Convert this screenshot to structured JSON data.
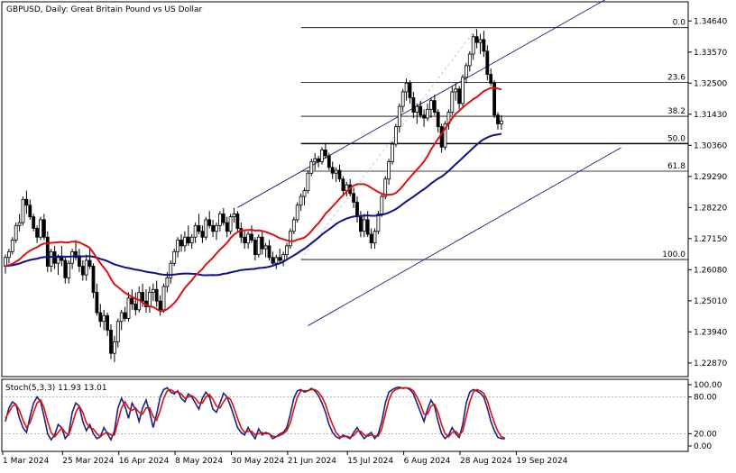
{
  "colors": {
    "background": "#ffffff",
    "frame": "#000000",
    "bull_candle": "#ffffff",
    "bear_candle": "#000000",
    "ma_fast": "#e01010",
    "ma_slow": "#10108a",
    "fib_line": "#000000",
    "channel": "#1a237e",
    "stoch_main": "#1a237e",
    "stoch_signal": "#e01010",
    "dashed_trend": "#bdbdbd"
  },
  "chart_data": [
    {
      "type": "candlestick",
      "title": "GBPUSD, Daily:  Great Britain Pound vs US Dollar",
      "ylim": [
        1.224,
        1.353
      ],
      "yticks": [
        "1.34640",
        "1.33570",
        "1.32500",
        "1.31430",
        "1.30360",
        "1.29290",
        "1.28220",
        "1.27150",
        "1.26080",
        "1.25010",
        "1.23940",
        "1.22870"
      ],
      "xticks": [
        "1 Mar 2024",
        "25 Mar 2024",
        "16 Apr 2024",
        "8 May 2024",
        "30 May 2024",
        "21 Jun 2024",
        "15 Jul 2024",
        "6 Aug 2024",
        "28 Aug 2024",
        "19 Sep 2024"
      ],
      "xtick_index": [
        0,
        17,
        33,
        49,
        65,
        81,
        98,
        114,
        130,
        146
      ],
      "grid": false,
      "fibonacci": {
        "levels": [
          {
            "label": "0.0",
            "value": 1.3441
          },
          {
            "label": "23.6",
            "value": 1.3252
          },
          {
            "label": "38.2",
            "value": 1.3136
          },
          {
            "label": "50.0",
            "value": 1.3042
          },
          {
            "label": "61.8",
            "value": 1.2947
          },
          {
            "label": "100.0",
            "value": 1.2643
          }
        ],
        "start_index": 84
      },
      "channel": {
        "upper": [
          {
            "i": 66,
            "v": 1.2822
          },
          {
            "i": 175,
            "v": 1.3568
          }
        ],
        "lower": [
          {
            "i": 86,
            "v": 1.2415
          },
          {
            "i": 175,
            "v": 1.3028
          }
        ]
      },
      "candles": [
        [
          1.262,
          1.266,
          1.2595,
          1.265
        ],
        [
          1.265,
          1.268,
          1.263,
          1.267
        ],
        [
          1.267,
          1.272,
          1.266,
          1.271
        ],
        [
          1.271,
          1.277,
          1.27,
          1.276
        ],
        [
          1.276,
          1.28,
          1.274,
          1.277
        ],
        [
          1.277,
          1.286,
          1.276,
          1.285
        ],
        [
          1.285,
          1.288,
          1.28,
          1.283
        ],
        [
          1.283,
          1.285,
          1.278,
          1.279
        ],
        [
          1.279,
          1.28,
          1.274,
          1.275
        ],
        [
          1.275,
          1.276,
          1.27,
          1.272
        ],
        [
          1.272,
          1.279,
          1.271,
          1.278
        ],
        [
          1.278,
          1.28,
          1.271,
          1.272
        ],
        [
          1.272,
          1.274,
          1.26,
          1.262
        ],
        [
          1.262,
          1.268,
          1.26,
          1.267
        ],
        [
          1.267,
          1.269,
          1.261,
          1.263
        ],
        [
          1.263,
          1.266,
          1.259,
          1.265
        ],
        [
          1.265,
          1.269,
          1.262,
          1.264
        ],
        [
          1.264,
          1.265,
          1.256,
          1.258
        ],
        [
          1.258,
          1.264,
          1.256,
          1.263
        ],
        [
          1.263,
          1.268,
          1.261,
          1.267
        ],
        [
          1.267,
          1.271,
          1.264,
          1.265
        ],
        [
          1.265,
          1.268,
          1.26,
          1.262
        ],
        [
          1.262,
          1.264,
          1.257,
          1.259
        ],
        [
          1.259,
          1.266,
          1.257,
          1.264
        ],
        [
          1.264,
          1.268,
          1.261,
          1.262
        ],
        [
          1.262,
          1.263,
          1.251,
          1.253
        ],
        [
          1.253,
          1.256,
          1.245,
          1.246
        ],
        [
          1.246,
          1.249,
          1.241,
          1.243
        ],
        [
          1.243,
          1.247,
          1.24,
          1.245
        ],
        [
          1.245,
          1.246,
          1.238,
          1.24
        ],
        [
          1.24,
          1.242,
          1.23,
          1.232
        ],
        [
          1.232,
          1.238,
          1.229,
          1.236
        ],
        [
          1.236,
          1.244,
          1.234,
          1.243
        ],
        [
          1.243,
          1.247,
          1.24,
          1.246
        ],
        [
          1.246,
          1.248,
          1.243,
          1.244
        ],
        [
          1.244,
          1.253,
          1.243,
          1.251
        ],
        [
          1.251,
          1.254,
          1.247,
          1.249
        ],
        [
          1.249,
          1.253,
          1.245,
          1.247
        ],
        [
          1.247,
          1.255,
          1.246,
          1.253
        ],
        [
          1.253,
          1.256,
          1.248,
          1.25
        ],
        [
          1.25,
          1.254,
          1.246,
          1.248
        ],
        [
          1.248,
          1.255,
          1.246,
          1.253
        ],
        [
          1.253,
          1.256,
          1.25,
          1.254
        ],
        [
          1.254,
          1.257,
          1.248,
          1.25
        ],
        [
          1.25,
          1.252,
          1.245,
          1.247
        ],
        [
          1.247,
          1.256,
          1.246,
          1.255
        ],
        [
          1.255,
          1.26,
          1.253,
          1.258
        ],
        [
          1.258,
          1.264,
          1.256,
          1.263
        ],
        [
          1.263,
          1.268,
          1.262,
          1.267
        ],
        [
          1.267,
          1.272,
          1.265,
          1.271
        ],
        [
          1.271,
          1.273,
          1.267,
          1.269
        ],
        [
          1.269,
          1.274,
          1.267,
          1.272
        ],
        [
          1.272,
          1.276,
          1.269,
          1.27
        ],
        [
          1.27,
          1.273,
          1.268,
          1.272
        ],
        [
          1.272,
          1.277,
          1.27,
          1.276
        ],
        [
          1.276,
          1.28,
          1.273,
          1.274
        ],
        [
          1.274,
          1.276,
          1.27,
          1.272
        ],
        [
          1.272,
          1.279,
          1.271,
          1.278
        ],
        [
          1.278,
          1.281,
          1.275,
          1.276
        ],
        [
          1.276,
          1.278,
          1.272,
          1.274
        ],
        [
          1.274,
          1.277,
          1.271,
          1.276
        ],
        [
          1.276,
          1.281,
          1.274,
          1.28
        ],
        [
          1.28,
          1.282,
          1.276,
          1.277
        ],
        [
          1.277,
          1.279,
          1.272,
          1.274
        ],
        [
          1.274,
          1.28,
          1.273,
          1.279
        ],
        [
          1.279,
          1.282,
          1.277,
          1.28
        ],
        [
          1.28,
          1.281,
          1.274,
          1.275
        ],
        [
          1.275,
          1.277,
          1.27,
          1.272
        ],
        [
          1.272,
          1.274,
          1.268,
          1.27
        ],
        [
          1.27,
          1.274,
          1.268,
          1.273
        ],
        [
          1.273,
          1.276,
          1.27,
          1.271
        ],
        [
          1.271,
          1.272,
          1.264,
          1.266
        ],
        [
          1.266,
          1.273,
          1.265,
          1.272
        ],
        [
          1.272,
          1.274,
          1.266,
          1.268
        ],
        [
          1.268,
          1.27,
          1.265,
          1.269
        ],
        [
          1.269,
          1.271,
          1.264,
          1.265
        ],
        [
          1.265,
          1.267,
          1.262,
          1.263
        ],
        [
          1.263,
          1.266,
          1.261,
          1.265
        ],
        [
          1.265,
          1.268,
          1.263,
          1.264
        ],
        [
          1.264,
          1.267,
          1.262,
          1.266
        ],
        [
          1.266,
          1.27,
          1.264,
          1.269
        ],
        [
          1.269,
          1.275,
          1.268,
          1.274
        ],
        [
          1.274,
          1.279,
          1.273,
          1.278
        ],
        [
          1.278,
          1.284,
          1.277,
          1.283
        ],
        [
          1.283,
          1.287,
          1.281,
          1.286
        ],
        [
          1.286,
          1.289,
          1.283,
          1.288
        ],
        [
          1.288,
          1.295,
          1.287,
          1.294
        ],
        [
          1.294,
          1.299,
          1.293,
          1.298
        ],
        [
          1.298,
          1.301,
          1.295,
          1.299
        ],
        [
          1.299,
          1.3,
          1.296,
          1.298
        ],
        [
          1.298,
          1.303,
          1.297,
          1.302
        ],
        [
          1.302,
          1.3045,
          1.299,
          1.3
        ],
        [
          1.3,
          1.301,
          1.295,
          1.296
        ],
        [
          1.296,
          1.298,
          1.292,
          1.294
        ],
        [
          1.294,
          1.296,
          1.291,
          1.295
        ],
        [
          1.295,
          1.297,
          1.291,
          1.292
        ],
        [
          1.292,
          1.293,
          1.286,
          1.288
        ],
        [
          1.288,
          1.291,
          1.286,
          1.29
        ],
        [
          1.29,
          1.292,
          1.286,
          1.287
        ],
        [
          1.287,
          1.289,
          1.282,
          1.284
        ],
        [
          1.284,
          1.286,
          1.277,
          1.279
        ],
        [
          1.279,
          1.281,
          1.272,
          1.274
        ],
        [
          1.274,
          1.28,
          1.272,
          1.278
        ],
        [
          1.278,
          1.281,
          1.272,
          1.273
        ],
        [
          1.273,
          1.275,
          1.268,
          1.27
        ],
        [
          1.27,
          1.275,
          1.268,
          1.274
        ],
        [
          1.274,
          1.281,
          1.273,
          1.28
        ],
        [
          1.28,
          1.287,
          1.279,
          1.286
        ],
        [
          1.286,
          1.293,
          1.285,
          1.292
        ],
        [
          1.292,
          1.299,
          1.29,
          1.298
        ],
        [
          1.298,
          1.305,
          1.297,
          1.304
        ],
        [
          1.304,
          1.311,
          1.303,
          1.31
        ],
        [
          1.31,
          1.318,
          1.308,
          1.317
        ],
        [
          1.317,
          1.323,
          1.315,
          1.322
        ],
        [
          1.322,
          1.3266,
          1.319,
          1.325
        ],
        [
          1.325,
          1.326,
          1.318,
          1.32
        ],
        [
          1.32,
          1.322,
          1.313,
          1.315
        ],
        [
          1.315,
          1.318,
          1.311,
          1.317
        ],
        [
          1.317,
          1.319,
          1.313,
          1.314
        ],
        [
          1.314,
          1.316,
          1.31,
          1.313
        ],
        [
          1.313,
          1.318,
          1.312,
          1.316
        ],
        [
          1.316,
          1.32,
          1.313,
          1.319
        ],
        [
          1.319,
          1.321,
          1.314,
          1.315
        ],
        [
          1.315,
          1.316,
          1.308,
          1.31
        ],
        [
          1.31,
          1.311,
          1.301,
          1.303
        ],
        [
          1.303,
          1.312,
          1.302,
          1.311
        ],
        [
          1.311,
          1.316,
          1.309,
          1.315
        ],
        [
          1.315,
          1.324,
          1.314,
          1.322
        ],
        [
          1.322,
          1.325,
          1.319,
          1.323
        ],
        [
          1.323,
          1.324,
          1.316,
          1.318
        ],
        [
          1.318,
          1.328,
          1.317,
          1.327
        ],
        [
          1.327,
          1.332,
          1.325,
          1.331
        ],
        [
          1.331,
          1.336,
          1.329,
          1.335
        ],
        [
          1.335,
          1.342,
          1.333,
          1.341
        ],
        [
          1.341,
          1.3436,
          1.337,
          1.339
        ],
        [
          1.339,
          1.342,
          1.335,
          1.34
        ],
        [
          1.34,
          1.343,
          1.334,
          1.336
        ],
        [
          1.336,
          1.338,
          1.326,
          1.328
        ],
        [
          1.328,
          1.33,
          1.324,
          1.325
        ],
        [
          1.325,
          1.326,
          1.313,
          1.314
        ],
        [
          1.314,
          1.315,
          1.309,
          1.311
        ],
        [
          1.311,
          1.314,
          1.309,
          1.312
        ]
      ],
      "ma_fast": {
        "period": 20
      },
      "ma_slow": {
        "period": 50
      },
      "ma_seed_close": 1.262
    },
    {
      "type": "line",
      "title": "Stoch(5,3,3) 11.93 13.01",
      "label": "Stoch(5,3,3) 11.93 13.01",
      "ylim": [
        0,
        100
      ],
      "yticks": [
        "100.00",
        "80.00",
        "20.00",
        "0.00"
      ],
      "levels": [
        80,
        20
      ],
      "series": [
        {
          "values": [
            40,
            62,
            72,
            68,
            45,
            30,
            22,
            48,
            70,
            80,
            72,
            48,
            20,
            10,
            18,
            35,
            30,
            12,
            20,
            55,
            70,
            65,
            40,
            25,
            35,
            20,
            12,
            15,
            30,
            20,
            10,
            25,
            62,
            78,
            65,
            45,
            70,
            60,
            40,
            62,
            75,
            55,
            30,
            52,
            80,
            92,
            95,
            88,
            85,
            90,
            78,
            72,
            85,
            80,
            70,
            60,
            78,
            88,
            80,
            60,
            55,
            70,
            86,
            80,
            65,
            48,
            30,
            22,
            18,
            30,
            20,
            12,
            28,
            18,
            22,
            20,
            12,
            15,
            20,
            22,
            30,
            52,
            78,
            90,
            92,
            88,
            90,
            94,
            90,
            82,
            70,
            55,
            35,
            22,
            15,
            12,
            18,
            15,
            12,
            22,
            30,
            20,
            12,
            18,
            22,
            12,
            20,
            40,
            70,
            88,
            92,
            95,
            96,
            94,
            95,
            92,
            85,
            70,
            55,
            40,
            60,
            75,
            65,
            40,
            20,
            12,
            18,
            30,
            20,
            14,
            35,
            70,
            88,
            92,
            90,
            86,
            80,
            62,
            40,
            25,
            14,
            12,
            11.93
          ]
        },
        {
          "values": [
            45,
            55,
            65,
            68,
            58,
            42,
            30,
            38,
            55,
            70,
            75,
            62,
            40,
            22,
            15,
            22,
            30,
            22,
            18,
            35,
            55,
            65,
            55,
            38,
            30,
            28,
            20,
            15,
            20,
            22,
            18,
            18,
            40,
            62,
            72,
            62,
            58,
            62,
            55,
            52,
            62,
            62,
            48,
            42,
            58,
            78,
            90,
            92,
            88,
            88,
            85,
            78,
            80,
            82,
            78,
            70,
            70,
            80,
            84,
            76,
            65,
            62,
            72,
            80,
            76,
            62,
            45,
            30,
            22,
            24,
            24,
            18,
            20,
            22,
            20,
            20,
            16,
            15,
            17,
            20,
            25,
            38,
            60,
            80,
            90,
            90,
            90,
            92,
            92,
            88,
            80,
            68,
            50,
            35,
            22,
            15,
            15,
            16,
            14,
            17,
            24,
            24,
            18,
            16,
            18,
            16,
            16,
            28,
            52,
            75,
            88,
            92,
            94,
            95,
            95,
            94,
            90,
            80,
            68,
            52,
            52,
            65,
            68,
            55,
            35,
            20,
            15,
            22,
            24,
            18,
            24,
            48,
            72,
            88,
            92,
            90,
            86,
            74,
            55,
            38,
            24,
            15,
            13.01
          ]
        }
      ]
    }
  ]
}
